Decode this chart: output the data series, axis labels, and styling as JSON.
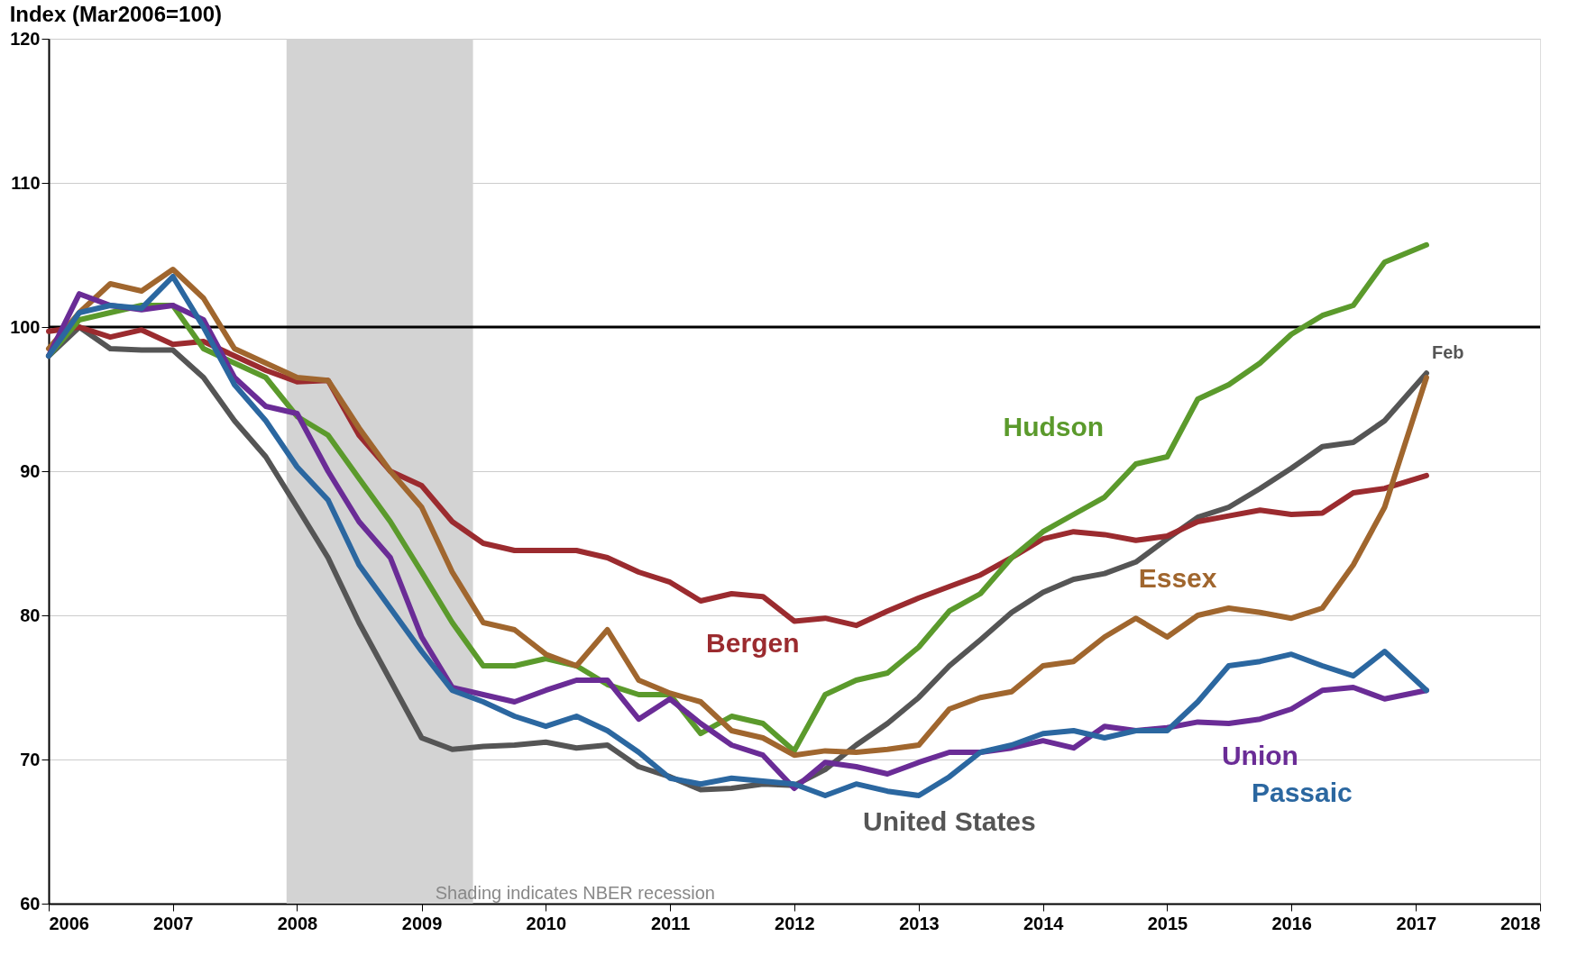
{
  "chart_data": {
    "type": "line",
    "ylabel": "Index (Mar2006=100)",
    "x": [
      "2006-01",
      "2006-04",
      "2006-07",
      "2006-10",
      "2007-01",
      "2007-04",
      "2007-07",
      "2007-10",
      "2008-01",
      "2008-04",
      "2008-07",
      "2008-10",
      "2009-01",
      "2009-04",
      "2009-07",
      "2009-10",
      "2010-01",
      "2010-04",
      "2010-07",
      "2010-10",
      "2011-01",
      "2011-04",
      "2011-07",
      "2011-10",
      "2012-01",
      "2012-04",
      "2012-07",
      "2012-10",
      "2013-01",
      "2013-04",
      "2013-07",
      "2013-10",
      "2014-01",
      "2014-04",
      "2014-07",
      "2014-10",
      "2015-01",
      "2015-04",
      "2015-07",
      "2015-10",
      "2016-01",
      "2016-04",
      "2016-07",
      "2016-10",
      "2017-02"
    ],
    "series": [
      {
        "name": "United States",
        "color": "#555555",
        "values": [
          98,
          100,
          98.5,
          98.4,
          98.4,
          96.5,
          93.5,
          91,
          87.5,
          84,
          79.5,
          75.5,
          71.5,
          70.7,
          70.9,
          71,
          71.2,
          70.8,
          71,
          69.5,
          68.8,
          67.9,
          68,
          68.3,
          68.2,
          69.3,
          71,
          72.5,
          74.3,
          76.5,
          78.3,
          80.2,
          81.6,
          82.5,
          82.9,
          83.7,
          85.3,
          86.8,
          87.5,
          88.8,
          90.2,
          91.7,
          92,
          93.5,
          96.8
        ]
      },
      {
        "name": "Bergen",
        "color": "#9b2b2f",
        "values": [
          99.7,
          100,
          99.3,
          99.8,
          98.8,
          99,
          98,
          97,
          96.2,
          96.3,
          92.5,
          90,
          89,
          86.5,
          85,
          84.5,
          84.5,
          84.5,
          84,
          83,
          82.3,
          81,
          81.5,
          81.3,
          79.6,
          79.8,
          79.3,
          80.3,
          81.2,
          82,
          82.8,
          84,
          85.3,
          85.8,
          85.6,
          85.2,
          85.5,
          86.5,
          86.9,
          87.3,
          87,
          87.1,
          88.5,
          88.8,
          89.7
        ]
      },
      {
        "name": "Hudson",
        "color": "#5b9a2c",
        "values": [
          98,
          100.5,
          101,
          101.5,
          101.5,
          98.5,
          97.5,
          96.5,
          93.8,
          92.5,
          89.5,
          86.5,
          83,
          79.5,
          76.5,
          76.5,
          77,
          76.5,
          75.2,
          74.5,
          74.5,
          71.8,
          73,
          72.5,
          70.6,
          74.5,
          75.5,
          76,
          77.8,
          80.3,
          81.5,
          84,
          85.8,
          87,
          88.2,
          90.5,
          91,
          95,
          96,
          97.5,
          99.5,
          100.8,
          101.5,
          104.5,
          105.7
        ]
      },
      {
        "name": "Essex",
        "color": "#a0662e",
        "values": [
          98.5,
          101,
          103,
          102.5,
          104,
          102,
          98.5,
          97.5,
          96.5,
          96.3,
          93,
          90,
          87.5,
          83,
          79.5,
          79,
          77.3,
          76.5,
          79,
          75.5,
          74.6,
          74,
          72,
          71.5,
          70.3,
          70.6,
          70.5,
          70.7,
          71,
          73.5,
          74.3,
          74.7,
          76.5,
          76.8,
          78.5,
          79.8,
          78.5,
          80,
          80.5,
          80.2,
          79.8,
          80.5,
          83.5,
          87.5,
          96.5
        ]
      },
      {
        "name": "Union",
        "color": "#6a2c96",
        "values": [
          98,
          102.3,
          101.5,
          101.2,
          101.5,
          100.5,
          96.5,
          94.5,
          94,
          90,
          86.5,
          84,
          78.5,
          75,
          74.5,
          74,
          74.8,
          75.5,
          75.5,
          72.8,
          74.2,
          72.5,
          71,
          70.3,
          68,
          69.8,
          69.5,
          69,
          69.8,
          70.5,
          70.5,
          70.8,
          71.3,
          70.8,
          72.3,
          72,
          72.2,
          72.6,
          72.5,
          72.8,
          73.5,
          74.8,
          75,
          74.2,
          74.8
        ]
      },
      {
        "name": "Passaic",
        "color": "#2b67a0",
        "values": [
          98,
          101,
          101.5,
          101.3,
          103.5,
          100,
          96,
          93.5,
          90.3,
          88,
          83.5,
          80.5,
          77.5,
          74.8,
          74,
          73,
          72.3,
          73,
          72,
          70.5,
          68.7,
          68.3,
          68.7,
          68.5,
          68.3,
          67.5,
          68.3,
          67.8,
          67.5,
          68.8,
          70.5,
          71,
          71.8,
          72,
          71.5,
          72,
          72,
          74,
          76.5,
          76.8,
          77.3,
          76.5,
          75.8,
          77.5,
          74.8
        ]
      }
    ],
    "xlim": [
      "2006",
      "2018"
    ],
    "xticks": [
      "2006",
      "2007",
      "2008",
      "2009",
      "2010",
      "2011",
      "2012",
      "2013",
      "2014",
      "2015",
      "2016",
      "2017",
      "2018"
    ],
    "ylim": [
      60,
      120
    ],
    "yticks": [
      60,
      70,
      80,
      90,
      100,
      110,
      120
    ],
    "ref_lines": [
      {
        "axis": "y",
        "value": 100,
        "color": "#000000"
      }
    ],
    "bands": [
      {
        "axis": "x",
        "from": "2007-12",
        "to": "2009-06",
        "label": "Shading indicates NBER recession",
        "color": "#d3d3d3"
      }
    ],
    "annotations": [
      {
        "text": "Feb",
        "x": "2017-02",
        "y": 96.8
      }
    ],
    "grid": "y",
    "line_style": "solid",
    "marker": "none"
  }
}
